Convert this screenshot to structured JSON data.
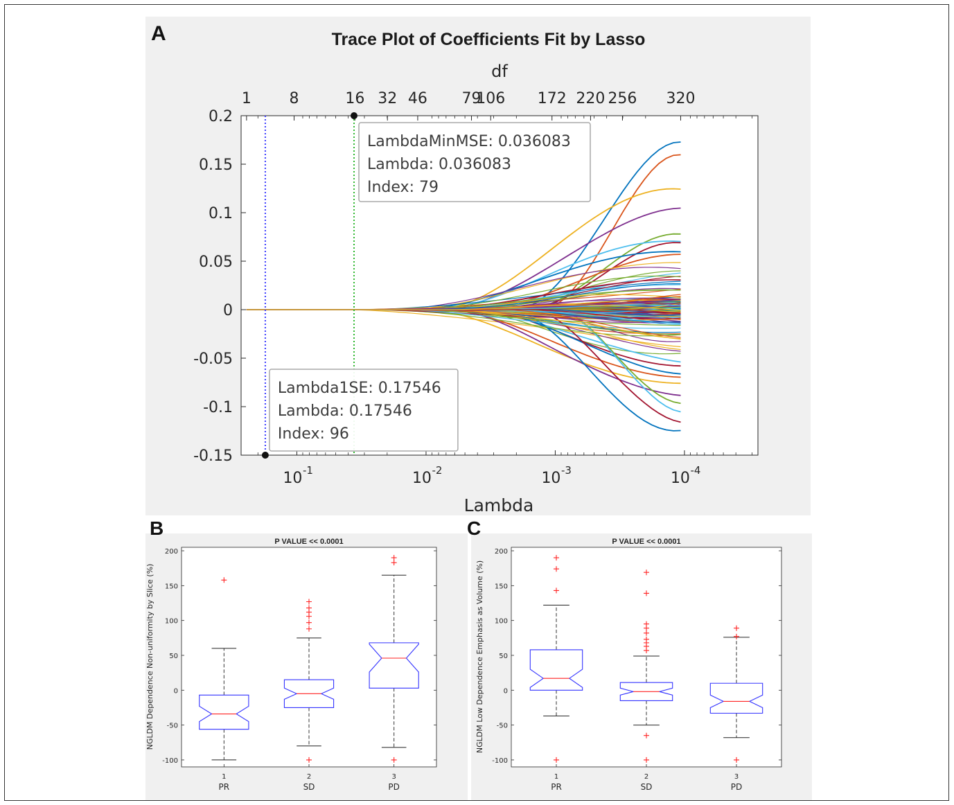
{
  "figure": {
    "panel_labels": {
      "a": "A",
      "b": "B",
      "c": "C"
    }
  },
  "chart_data": [
    {
      "id": "A",
      "type": "line",
      "title": "Trace Plot of Coefficients Fit by Lasso",
      "xlabel": "Lambda",
      "ylabel": "",
      "top_axis_label": "df",
      "x_scale": "log-reversed",
      "xlim": [
        0.27,
        2.7e-05
      ],
      "ylim": [
        -0.15,
        0.2
      ],
      "yticks": [
        "0.2",
        "0.15",
        "0.1",
        "0.05",
        "0",
        "-0.05",
        "-0.1",
        "-0.15"
      ],
      "xticks": [
        {
          "value": 0.1,
          "base": "10",
          "exp": "-1"
        },
        {
          "value": 0.01,
          "base": "10",
          "exp": "-2"
        },
        {
          "value": 0.001,
          "base": "10",
          "exp": "-3"
        },
        {
          "value": 0.0001,
          "base": "10",
          "exp": "-4"
        }
      ],
      "df_ticks": [
        {
          "label": "1",
          "lambda": 0.245
        },
        {
          "label": "8",
          "lambda": 0.105
        },
        {
          "label": "16",
          "lambda": 0.0355
        },
        {
          "label": "32",
          "lambda": 0.0199
        },
        {
          "label": "46",
          "lambda": 0.0116
        },
        {
          "label": "79",
          "lambda": 0.00445
        },
        {
          "label": "106",
          "lambda": 0.00316
        },
        {
          "label": "172",
          "lambda": 0.00106
        },
        {
          "label": "220",
          "lambda": 0.000533
        },
        {
          "label": "256",
          "lambda": 0.000302
        },
        {
          "label": "320",
          "lambda": 0.000107
        }
      ],
      "vlines": [
        {
          "name": "Lambda1SE",
          "lambda": 0.17546,
          "color": "#3b3bff"
        },
        {
          "name": "LambdaMinMSE",
          "lambda": 0.036083,
          "color": "#2fb82f"
        }
      ],
      "datatips": [
        {
          "lines": [
            "LambdaMinMSE: 0.036083",
            "Lambda: 0.036083",
            "Index: 79"
          ],
          "lambda": 0.036083,
          "y": 0.2
        },
        {
          "lines": [
            "Lambda1SE: 0.17546",
            "Lambda: 0.17546",
            "Index: 96"
          ],
          "lambda": 0.17546,
          "y": -0.15
        }
      ],
      "series_colors": [
        "#0072bd",
        "#d95319",
        "#edb120",
        "#7e2f8e",
        "#77ac30",
        "#4dbeee",
        "#a2142f"
      ],
      "highlight_endpoints": [
        0.168,
        0.158,
        0.127,
        0.103,
        0.078,
        0.073,
        0.068,
        0.062,
        0.057,
        0.05,
        0.044,
        0.04,
        0.035,
        0.03,
        -0.02,
        -0.028,
        -0.035,
        -0.043,
        -0.05,
        -0.055,
        -0.06,
        -0.066,
        -0.072,
        -0.08,
        -0.092,
        -0.099,
        -0.105,
        -0.118,
        -0.127
      ],
      "line_count": 150
    },
    {
      "id": "B",
      "type": "box",
      "title": "P VALUE << 0.0001",
      "ylabel": "NGLDM Dependence Non-uniformity by Slice (%)",
      "ylim": [
        -110,
        205
      ],
      "yticks": [
        200,
        150,
        100,
        50,
        0,
        -50,
        -100
      ],
      "categories": [
        {
          "num": "1",
          "name": "PR"
        },
        {
          "num": "2",
          "name": "SD"
        },
        {
          "num": "3",
          "name": "PD"
        }
      ],
      "boxes": [
        {
          "q1": -56,
          "median": -34,
          "q3": -7,
          "notch_lo": -45,
          "notch_hi": -23,
          "whisker_lo": -100,
          "whisker_hi": 60,
          "outliers": [
            158
          ]
        },
        {
          "q1": -25,
          "median": -5,
          "q3": 15,
          "notch_lo": -13,
          "notch_hi": 3,
          "whisker_lo": -80,
          "whisker_hi": 75,
          "outliers": [
            127,
            118,
            112,
            106,
            97,
            88,
            -100
          ]
        },
        {
          "q1": 3,
          "median": 46,
          "q3": 68,
          "notch_lo": 26,
          "notch_hi": 66,
          "whisker_lo": -82,
          "whisker_hi": 165,
          "outliers": [
            190,
            183,
            -100
          ]
        }
      ]
    },
    {
      "id": "C",
      "type": "box",
      "title": "P VALUE << 0.0001",
      "ylabel": "NGLDM Low Dependence Emphasis as Volume (%)",
      "ylim": [
        -110,
        205
      ],
      "yticks": [
        200,
        150,
        100,
        50,
        0,
        -50,
        -100
      ],
      "categories": [
        {
          "num": "1",
          "name": "PR"
        },
        {
          "num": "2",
          "name": "SD"
        },
        {
          "num": "3",
          "name": "PD"
        }
      ],
      "boxes": [
        {
          "q1": 0,
          "median": 17,
          "q3": 58,
          "notch_lo": 4,
          "notch_hi": 30,
          "whisker_lo": -37,
          "whisker_hi": 122,
          "outliers": [
            190,
            174,
            143,
            -100
          ]
        },
        {
          "q1": -15,
          "median": -2,
          "q3": 11,
          "notch_lo": -7,
          "notch_hi": 3,
          "whisker_lo": -50,
          "whisker_hi": 49,
          "outliers": [
            169,
            139,
            95,
            89,
            82,
            73,
            68,
            63,
            57,
            -65,
            -100
          ]
        },
        {
          "q1": -33,
          "median": -16,
          "q3": 10,
          "notch_lo": -25,
          "notch_hi": -7,
          "whisker_lo": -68,
          "whisker_hi": 76,
          "outliers": [
            89,
            77,
            -100
          ]
        }
      ]
    }
  ]
}
